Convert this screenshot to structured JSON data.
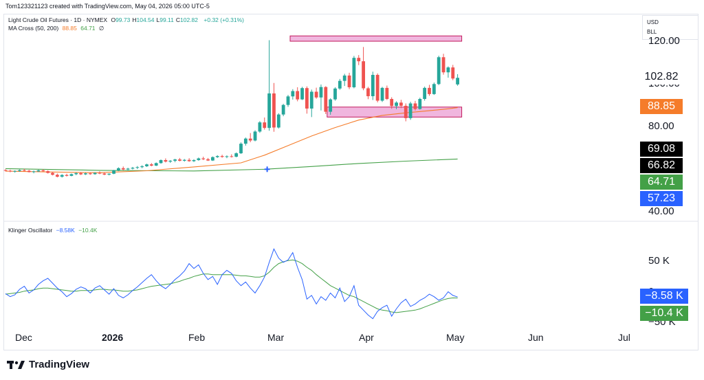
{
  "header": {
    "attribution": "Tom123321123 created with TradingView.com, May 04, 2026 05:00 UTC-5"
  },
  "legend": {
    "symbol": "Light Crude Oil Futures · 1D · NYMEX",
    "ohlc": [
      {
        "key": "O",
        "value": "99.73"
      },
      {
        "key": "H",
        "value": "104.54"
      },
      {
        "key": "L",
        "value": "99.11"
      },
      {
        "key": "C",
        "value": "102.82"
      }
    ],
    "change": "+0.32 (+0.31%)",
    "ma_label": "MA Cross (50, 200)",
    "ma_fast": "88.85",
    "ma_slow": "64.71",
    "ma_flag": "∅",
    "osc_label": "Klinger Oscillator",
    "osc_kvo": "−8.58K",
    "osc_signal": "−10.4K"
  },
  "currency": {
    "code": "USD",
    "unit": "BLL"
  },
  "price_axis": {
    "ticks": [
      "120.00",
      "80.00",
      "40.00"
    ],
    "partial": "100.00"
  },
  "price_tags": [
    {
      "label": "102.82",
      "color": "#ffffff",
      "text_color": "#131722"
    },
    {
      "label": "88.85",
      "color": "#f57c2a",
      "text_color": "#ffffff"
    },
    {
      "label": "69.08",
      "color": "#000000",
      "text_color": "#ffffff"
    },
    {
      "label": "66.82",
      "color": "#000000",
      "text_color": "#ffffff"
    },
    {
      "label": "64.71",
      "color": "#43a047",
      "text_color": "#ffffff"
    },
    {
      "label": "57.23",
      "color": "#2962ff",
      "text_color": "#ffffff"
    }
  ],
  "osc_axis": {
    "ticks": [
      "50 K",
      "0",
      "−50 K"
    ]
  },
  "osc_tags": [
    {
      "label": "−8.58 K",
      "color": "#2962ff"
    },
    {
      "label": "−10.4 K",
      "color": "#43a047"
    }
  ],
  "time_axis": [
    "Dec",
    "2026",
    "Feb",
    "Mar",
    "Apr",
    "May",
    "Jun",
    "Jul"
  ],
  "brand": "TradingView",
  "colors": {
    "up": "#26a69a",
    "down": "#ef5350",
    "ma_fast": "#f57c2a",
    "ma_slow": "#43a047",
    "kvo": "#2962ff",
    "signal": "#43a047",
    "zone_fill": "#f0b6de",
    "zone_border": "#c2185b"
  },
  "chart_data": {
    "type": "candlestick",
    "title": "Light Crude Oil Futures · 1D · NYMEX",
    "ylim": [
      40,
      125
    ],
    "candles": [
      [
        59.5,
        59.9,
        58.9,
        59.2
      ],
      [
        59.2,
        59.7,
        58.5,
        58.9
      ],
      [
        58.9,
        59.4,
        58.3,
        59.1
      ],
      [
        59.1,
        59.8,
        58.7,
        59.5
      ],
      [
        59.5,
        60.1,
        59.0,
        59.2
      ],
      [
        59.2,
        59.6,
        58.4,
        58.6
      ],
      [
        58.6,
        59.3,
        58.0,
        58.9
      ],
      [
        58.9,
        59.7,
        58.6,
        59.4
      ],
      [
        59.4,
        59.9,
        58.8,
        59.0
      ],
      [
        59.0,
        59.4,
        57.9,
        58.2
      ],
      [
        58.2,
        58.7,
        57.0,
        57.3
      ],
      [
        57.3,
        57.9,
        56.1,
        56.4
      ],
      [
        56.4,
        57.6,
        56.0,
        57.2
      ],
      [
        57.2,
        57.8,
        56.5,
        56.8
      ],
      [
        56.8,
        57.9,
        56.6,
        57.6
      ],
      [
        57.6,
        58.4,
        57.1,
        58.1
      ],
      [
        58.1,
        58.6,
        57.2,
        57.5
      ],
      [
        57.5,
        58.3,
        57.2,
        58.0
      ],
      [
        58.0,
        58.4,
        57.3,
        57.6
      ],
      [
        57.6,
        58.5,
        57.3,
        58.2
      ],
      [
        58.2,
        58.9,
        57.6,
        57.9
      ],
      [
        57.9,
        58.5,
        57.1,
        57.4
      ],
      [
        57.4,
        58.0,
        57.0,
        57.8
      ],
      [
        57.8,
        59.6,
        57.6,
        59.4
      ],
      [
        59.4,
        60.8,
        59.0,
        60.4
      ],
      [
        60.4,
        61.2,
        59.4,
        59.8
      ],
      [
        59.8,
        60.6,
        59.2,
        60.2
      ],
      [
        60.2,
        61.0,
        59.8,
        60.6
      ],
      [
        60.6,
        61.4,
        60.0,
        60.9
      ],
      [
        60.9,
        61.8,
        60.4,
        61.3
      ],
      [
        61.3,
        62.5,
        61.0,
        62.2
      ],
      [
        62.2,
        62.8,
        61.3,
        61.6
      ],
      [
        61.6,
        63.1,
        61.4,
        62.8
      ],
      [
        62.8,
        64.5,
        62.5,
        64.2
      ],
      [
        64.2,
        65.0,
        63.1,
        63.5
      ],
      [
        63.5,
        64.2,
        62.9,
        63.9
      ],
      [
        63.9,
        64.8,
        63.2,
        64.5
      ],
      [
        64.5,
        65.2,
        63.6,
        63.9
      ],
      [
        63.9,
        64.7,
        63.5,
        64.3
      ],
      [
        64.3,
        65.1,
        63.4,
        63.7
      ],
      [
        63.7,
        64.6,
        63.3,
        64.2
      ],
      [
        64.2,
        65.4,
        63.9,
        65.0
      ],
      [
        65.0,
        65.8,
        64.2,
        64.6
      ],
      [
        64.6,
        65.2,
        63.8,
        64.0
      ],
      [
        64.0,
        65.9,
        63.8,
        65.6
      ],
      [
        65.6,
        66.5,
        65.2,
        66.1
      ],
      [
        66.1,
        66.7,
        65.3,
        65.7
      ],
      [
        65.7,
        66.4,
        65.1,
        66.0
      ],
      [
        66.0,
        66.9,
        65.4,
        65.8
      ],
      [
        65.8,
        67.8,
        65.5,
        67.4
      ],
      [
        67.4,
        72.5,
        67.1,
        71.9
      ],
      [
        71.9,
        74.8,
        71.0,
        74.3
      ],
      [
        74.3,
        76.9,
        72.6,
        73.4
      ],
      [
        73.4,
        78.2,
        73.0,
        77.6
      ],
      [
        77.6,
        82.5,
        77.0,
        81.9
      ],
      [
        81.9,
        84.2,
        78.5,
        79.3
      ],
      [
        79.3,
        120.5,
        78.0,
        95.5
      ],
      [
        95.5,
        100.4,
        77.5,
        79.5
      ],
      [
        79.5,
        86.2,
        79.0,
        85.6
      ],
      [
        85.6,
        90.6,
        84.8,
        90.1
      ],
      [
        90.1,
        94.8,
        89.2,
        94.1
      ],
      [
        94.1,
        97.5,
        92.6,
        96.6
      ],
      [
        96.6,
        98.4,
        91.8,
        92.7
      ],
      [
        92.7,
        98.6,
        92.4,
        98.0
      ],
      [
        98.0,
        98.8,
        86.0,
        88.4
      ],
      [
        88.4,
        97.3,
        84.4,
        96.3
      ],
      [
        96.3,
        98.2,
        93.0,
        93.6
      ],
      [
        93.6,
        99.7,
        87.5,
        98.5
      ],
      [
        98.5,
        98.9,
        85.8,
        86.9
      ],
      [
        86.9,
        93.2,
        85.5,
        92.7
      ],
      [
        92.7,
        98.4,
        92.1,
        97.8
      ],
      [
        97.8,
        102.3,
        97.2,
        101.4
      ],
      [
        101.4,
        104.7,
        99.0,
        103.9
      ],
      [
        103.9,
        105.2,
        97.5,
        98.4
      ],
      [
        98.4,
        113.1,
        97.9,
        112.2
      ],
      [
        112.2,
        113.5,
        108.8,
        110.6
      ],
      [
        110.6,
        117.3,
        97.0,
        97.9
      ],
      [
        97.9,
        98.6,
        92.8,
        94.2
      ],
      [
        94.2,
        105.7,
        92.4,
        104.2
      ],
      [
        104.2,
        104.9,
        91.3,
        92.1
      ],
      [
        92.1,
        98.6,
        91.5,
        98.1
      ],
      [
        98.1,
        99.2,
        92.4,
        92.9
      ],
      [
        92.9,
        93.7,
        88.3,
        89.6
      ],
      [
        89.6,
        91.8,
        88.1,
        91.2
      ],
      [
        91.2,
        92.5,
        88.6,
        89.7
      ],
      [
        89.7,
        90.8,
        82.4,
        83.9
      ],
      [
        83.9,
        91.6,
        83.1,
        90.8
      ],
      [
        90.8,
        92.0,
        87.5,
        88.2
      ],
      [
        88.2,
        93.5,
        87.9,
        92.9
      ],
      [
        92.9,
        98.7,
        92.1,
        98.1
      ],
      [
        98.1,
        99.5,
        94.4,
        95.2
      ],
      [
        95.2,
        100.6,
        94.8,
        99.9
      ],
      [
        99.9,
        113.2,
        99.4,
        112.5
      ],
      [
        112.5,
        114.1,
        104.3,
        105.4
      ],
      [
        105.4,
        108.2,
        102.9,
        107.7
      ],
      [
        107.7,
        108.9,
        101.7,
        102.5
      ],
      [
        99.73,
        104.54,
        99.11,
        102.82
      ]
    ],
    "ma_fast": [
      [
        0,
        59.0
      ],
      [
        10,
        58.6
      ],
      [
        20,
        58.3
      ],
      [
        30,
        59.2
      ],
      [
        40,
        61.0
      ],
      [
        50,
        62.9
      ],
      [
        55,
        66.5
      ],
      [
        60,
        71.0
      ],
      [
        65,
        75.5
      ],
      [
        70,
        79.5
      ],
      [
        75,
        83.0
      ],
      [
        80,
        85.2
      ],
      [
        85,
        86.4
      ],
      [
        90,
        87.4
      ],
      [
        94,
        88.3
      ],
      [
        96,
        88.85
      ]
    ],
    "ma_slow": [
      [
        0,
        60.2
      ],
      [
        20,
        59.4
      ],
      [
        40,
        59.1
      ],
      [
        55,
        59.9
      ],
      [
        65,
        61.2
      ],
      [
        75,
        62.6
      ],
      [
        85,
        63.7
      ],
      [
        96,
        64.71
      ]
    ],
    "resistance_zone": [
      120.0,
      122.5
    ],
    "support_zone": [
      84.4,
      89.1
    ],
    "cross_marker": [
      56,
      59.9
    ],
    "klinger": {
      "kvo": [
        -3,
        -8,
        -5,
        4,
        9,
        -2,
        3,
        12,
        18,
        22,
        14,
        6,
        0,
        -8,
        -3,
        4,
        8,
        5,
        -2,
        6,
        10,
        3,
        -4,
        5,
        -6,
        -10,
        -5,
        2,
        8,
        15,
        22,
        28,
        18,
        10,
        5,
        12,
        20,
        26,
        34,
        46,
        38,
        44,
        30,
        20,
        25,
        12,
        28,
        35,
        30,
        18,
        10,
        16,
        6,
        -2,
        10,
        24,
        48,
        70,
        55,
        48,
        52,
        64,
        40,
        20,
        -12,
        -6,
        -20,
        -8,
        -14,
        -2,
        -10,
        6,
        -16,
        -8,
        10,
        -22,
        -30,
        -38,
        -44,
        -32,
        -26,
        -22,
        -40,
        -28,
        -18,
        -12,
        -24,
        -20,
        -14,
        -10,
        -4,
        -8,
        -14,
        -10,
        0,
        -6,
        -8.58
      ],
      "signal": [
        -4,
        -3,
        -2,
        -1,
        1,
        2,
        3,
        5,
        6,
        6,
        5,
        4,
        3,
        2,
        1,
        1,
        2,
        2,
        2,
        3,
        4,
        4,
        3,
        3,
        2,
        1,
        1,
        2,
        3,
        5,
        7,
        9,
        10,
        11,
        12,
        13,
        15,
        17,
        20,
        22,
        25,
        27,
        29,
        29,
        28,
        28,
        28,
        28,
        28,
        27,
        26,
        26,
        25,
        24,
        24,
        26,
        32,
        40,
        46,
        49,
        51,
        52,
        50,
        46,
        40,
        35,
        28,
        22,
        16,
        10,
        6,
        2,
        -2,
        -6,
        -8,
        -12,
        -16,
        -20,
        -24,
        -28,
        -30,
        -31,
        -33,
        -34,
        -33,
        -32,
        -31,
        -30,
        -28,
        -25,
        -22,
        -19,
        -16,
        -13,
        -11,
        -10,
        -10.4
      ],
      "ylim": [
        -60,
        95
      ]
    },
    "x_ticks": [
      "Dec",
      "2026",
      "Feb",
      "Mar",
      "Apr",
      "May",
      "Jun",
      "Jul"
    ]
  }
}
